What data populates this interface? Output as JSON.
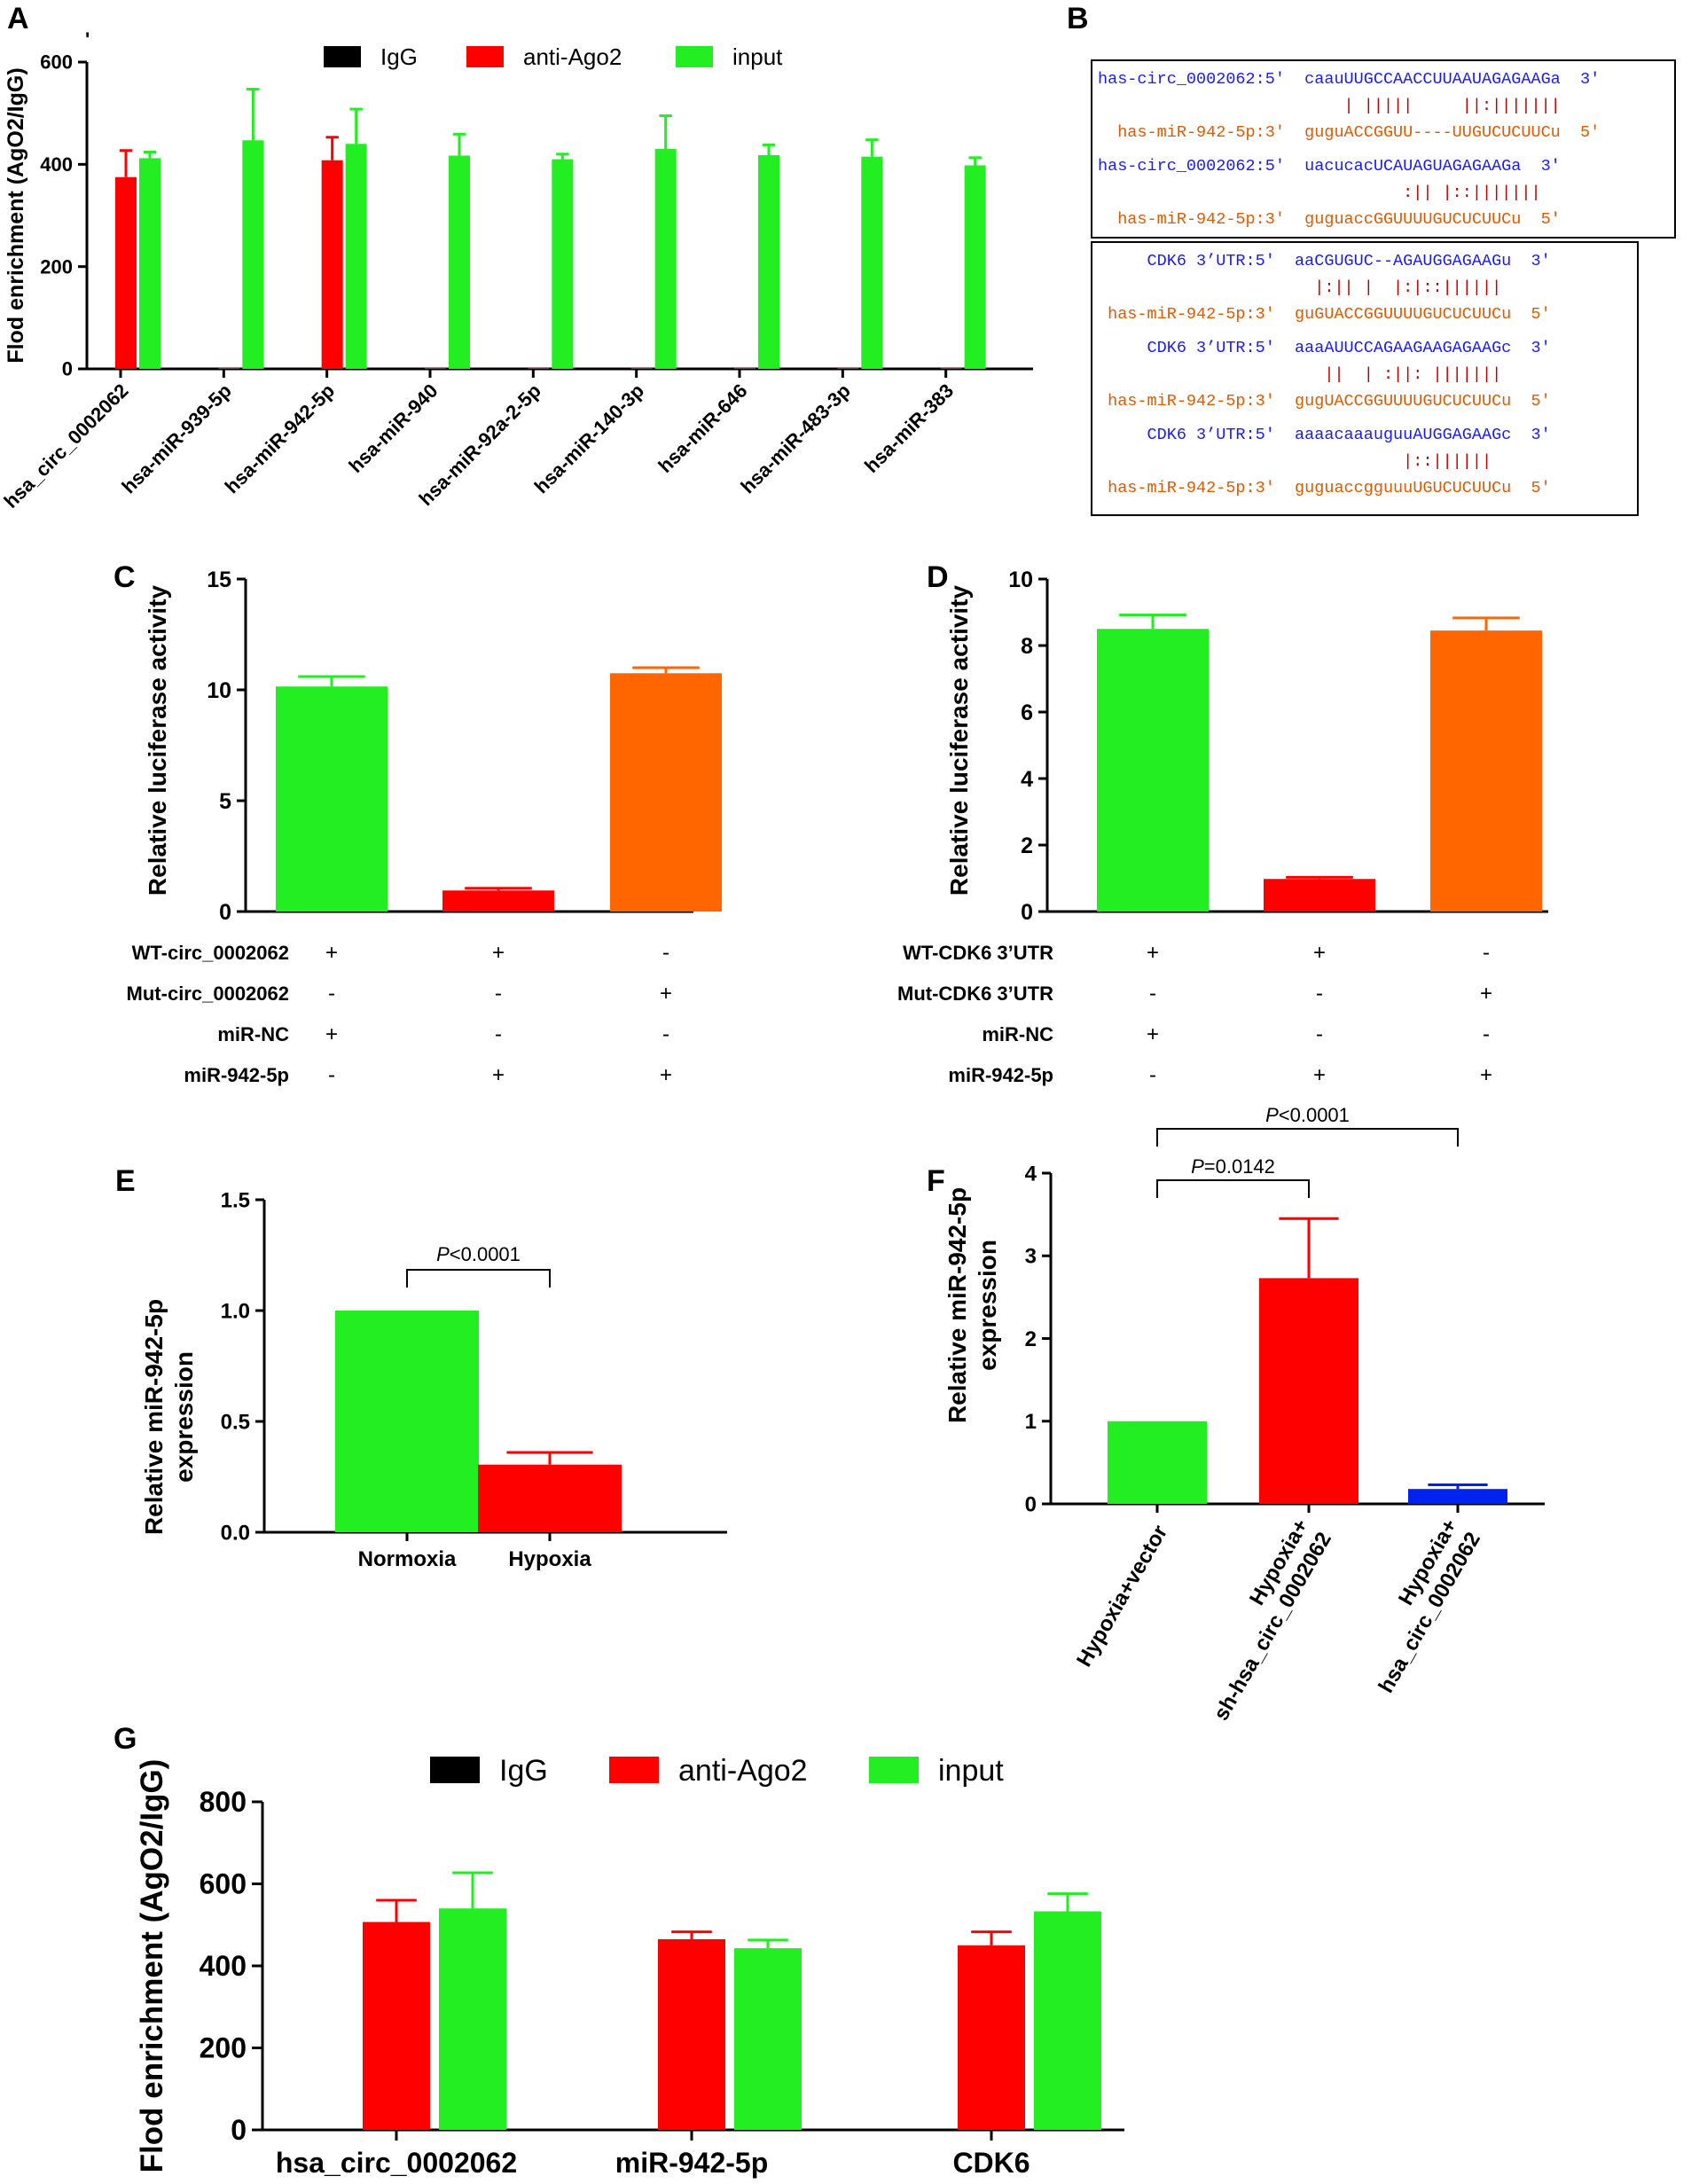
{
  "colors": {
    "igg": "#000000",
    "ago2": "#ff0000",
    "input": "#22ee22",
    "green": "#22ee22",
    "red": "#ff0000",
    "orange": "#ff6600",
    "blue": "#0022ee",
    "seq_blue": "#1a1aff",
    "seq_orange": "#e05a00",
    "seq_red": "#c00000"
  },
  "panel_letters": {
    "a": "A",
    "b": "B",
    "c": "C",
    "d": "D",
    "e": "E",
    "f": "F",
    "g": "G"
  },
  "chart_data": [
    {
      "id": "A",
      "type": "bar",
      "title": "",
      "ylabel": "Flod enrichment (AgO2/IgG)",
      "ylabel_extra": "'",
      "ylim": [
        0,
        600
      ],
      "yticks": [
        0,
        200,
        400,
        600
      ],
      "categories": [
        "hsa_circ_0002062",
        "hsa-miR-939-5p",
        "hsa-miR-942-5p",
        "hsa-miR-940",
        "hsa-miR-92a-2-5p",
        "hsa-miR-140-3p",
        "hsa-miR-646",
        "hsa-miR-483-3p",
        "hsa-miR-383"
      ],
      "series": [
        {
          "name": "IgG",
          "color_key": "igg",
          "values": [
            0,
            0,
            0,
            0,
            0,
            0,
            0,
            0,
            0
          ],
          "errors": [
            0,
            0,
            0,
            0,
            0,
            0,
            0,
            0,
            0
          ]
        },
        {
          "name": "anti-Ago2",
          "color_key": "ago2",
          "values": [
            375,
            2,
            408,
            2,
            2,
            2,
            2,
            2,
            2
          ],
          "errors": [
            52,
            0,
            45,
            0,
            0,
            0,
            0,
            0,
            0
          ]
        },
        {
          "name": "input",
          "color_key": "input",
          "values": [
            412,
            447,
            440,
            417,
            410,
            430,
            418,
            415,
            398
          ],
          "errors": [
            12,
            100,
            68,
            42,
            10,
            65,
            20,
            33,
            15
          ]
        }
      ],
      "legend": [
        "IgG",
        "anti-Ago2",
        "input"
      ],
      "legend_position": "top"
    },
    {
      "id": "C",
      "type": "bar",
      "ylabel": "Relative luciferase activity",
      "ylim": [
        0,
        15
      ],
      "yticks": [
        0,
        5,
        10,
        15
      ],
      "bars": [
        {
          "value": 10.15,
          "error": 0.45,
          "color_key": "green"
        },
        {
          "value": 0.95,
          "error": 0.1,
          "color_key": "red"
        },
        {
          "value": 10.75,
          "error": 0.25,
          "color_key": "orange"
        }
      ],
      "condition_rows": [
        {
          "label": "WT-circ_0002062",
          "marks": [
            "+",
            "+",
            "-"
          ]
        },
        {
          "label": "Mut-circ_0002062",
          "marks": [
            "-",
            "-",
            "+"
          ]
        },
        {
          "label": "miR-NC",
          "marks": [
            "+",
            "-",
            "-"
          ]
        },
        {
          "label": "miR-942-5p",
          "marks": [
            "-",
            "+",
            "+"
          ]
        }
      ]
    },
    {
      "id": "D",
      "type": "bar",
      "ylabel": "Relative luciferase activity",
      "ylim": [
        0,
        10
      ],
      "yticks": [
        0,
        2,
        4,
        6,
        8,
        10
      ],
      "bars": [
        {
          "value": 8.5,
          "error": 0.42,
          "color_key": "green"
        },
        {
          "value": 0.98,
          "error": 0.05,
          "color_key": "red"
        },
        {
          "value": 8.45,
          "error": 0.38,
          "color_key": "orange"
        }
      ],
      "condition_rows": [
        {
          "label": "WT-CDK6 3’UTR",
          "marks": [
            "+",
            "+",
            "-"
          ]
        },
        {
          "label": "Mut-CDK6 3’UTR",
          "marks": [
            "-",
            "-",
            "+"
          ]
        },
        {
          "label": "miR-NC",
          "marks": [
            "+",
            "-",
            "-"
          ]
        },
        {
          "label": "miR-942-5p",
          "marks": [
            "-",
            "+",
            "+"
          ]
        }
      ]
    },
    {
      "id": "E",
      "type": "bar",
      "ylabel": [
        "Relative miR-942-5p",
        "expression"
      ],
      "ylim": [
        0,
        1.5
      ],
      "yticks": [
        "0.0",
        "0.5",
        "1.0",
        "1.5"
      ],
      "categories": [
        "Normoxia",
        "Hypoxia"
      ],
      "bars": [
        {
          "value": 1.0,
          "error": 0,
          "color_key": "green"
        },
        {
          "value": 0.305,
          "error": 0.055,
          "color_key": "red"
        }
      ],
      "significance": [
        {
          "from": 0,
          "to": 1,
          "p_italic": "P",
          "p_rest": "<0.0001"
        }
      ]
    },
    {
      "id": "F",
      "type": "bar",
      "ylabel": [
        "Relative miR-942-5p",
        "expression"
      ],
      "ylim": [
        0,
        4
      ],
      "yticks": [
        0,
        1,
        2,
        3,
        4
      ],
      "categories": [
        [
          "Hypoxia+vector"
        ],
        [
          "Hypoxia+",
          "sh-hsa_circ_0002062"
        ],
        [
          "Hypoxia+",
          "hsa_circ_0002062"
        ]
      ],
      "bars": [
        {
          "value": 1.0,
          "error": 0,
          "color_key": "green"
        },
        {
          "value": 2.73,
          "error": 0.72,
          "color_key": "red"
        },
        {
          "value": 0.18,
          "error": 0.05,
          "color_key": "blue"
        }
      ],
      "significance": [
        {
          "from": 0,
          "to": 1,
          "p_italic": "P",
          "p_rest": "=0.0142",
          "level": 0
        },
        {
          "from": 0,
          "to": 2,
          "p_italic": "P",
          "p_rest": "<0.0001",
          "level": 1
        }
      ]
    },
    {
      "id": "G",
      "type": "bar",
      "ylabel": "Flod enrichment (AgO2/IgG)",
      "ylim": [
        0,
        800
      ],
      "yticks": [
        0,
        200,
        400,
        600,
        800
      ],
      "categories": [
        "hsa_circ_0002062",
        "miR-942-5p",
        "CDK6"
      ],
      "series": [
        {
          "name": "IgG",
          "color_key": "igg",
          "values": [
            0,
            0,
            0
          ],
          "errors": [
            0,
            0,
            0
          ]
        },
        {
          "name": "anti-Ago2",
          "color_key": "ago2",
          "values": [
            507,
            465,
            450
          ],
          "errors": [
            53,
            18,
            33
          ]
        },
        {
          "name": "input",
          "color_key": "input",
          "values": [
            540,
            443,
            533
          ],
          "errors": [
            87,
            20,
            43
          ]
        }
      ],
      "legend": [
        "IgG",
        "anti-Ago2",
        "input"
      ],
      "legend_position": "top"
    }
  ],
  "panel_b": {
    "box1": [
      {
        "text": "has-circ_0002062:5'  caauUUGCCAACCUUAAUAGAGAAGa  3'",
        "color_key": "seq_blue"
      },
      {
        "text": "                         | |||||     ||:|||||||",
        "color_key": "seq_red"
      },
      {
        "text": "  has-miR-942-5p:3'  guguACCGGUU----UUGUCUCUUCu  5'",
        "color_key": "seq_orange"
      },
      {
        "text": "has-circ_0002062:5'  uacucacUCAUAGUAGAGAAGa  3'",
        "color_key": "seq_blue"
      },
      {
        "text": "                               :|| |::|||||||",
        "color_key": "seq_red"
      },
      {
        "text": "  has-miR-942-5p:3'  guguaccGGUUUUGUCUCUUCu  5'",
        "color_key": "seq_orange"
      }
    ],
    "box2": [
      {
        "text": "     CDK6 3’UTR:5'  aaCGUGUC--AGAUGGAGAAGu  3'",
        "color_key": "seq_blue"
      },
      {
        "text": "                      |:|| |  |:|::||||||",
        "color_key": "seq_red"
      },
      {
        "text": " has-miR-942-5p:3'  guGUACCGGUUUUGUCUCUUCu  5'",
        "color_key": "seq_orange"
      },
      {
        "text": "     CDK6 3’UTR:5'  aaaAUUCCAGAAGAAGAGAAGc  3'",
        "color_key": "seq_blue"
      },
      {
        "text": "                       ||  | :||: |||||||",
        "color_key": "seq_red"
      },
      {
        "text": " has-miR-942-5p:3'  gugUACCGGUUUUGUCUCUUCu  5'",
        "color_key": "seq_orange"
      },
      {
        "text": "     CDK6 3’UTR:5'  aaaacaaauguuAUGGAGAAGc  3'",
        "color_key": "seq_blue"
      },
      {
        "text": "                               |::||||||",
        "color_key": "seq_red"
      },
      {
        "text": " has-miR-942-5p:3'  guguaccgguuuUGUCUCUUCu  5'",
        "color_key": "seq_orange"
      }
    ]
  }
}
